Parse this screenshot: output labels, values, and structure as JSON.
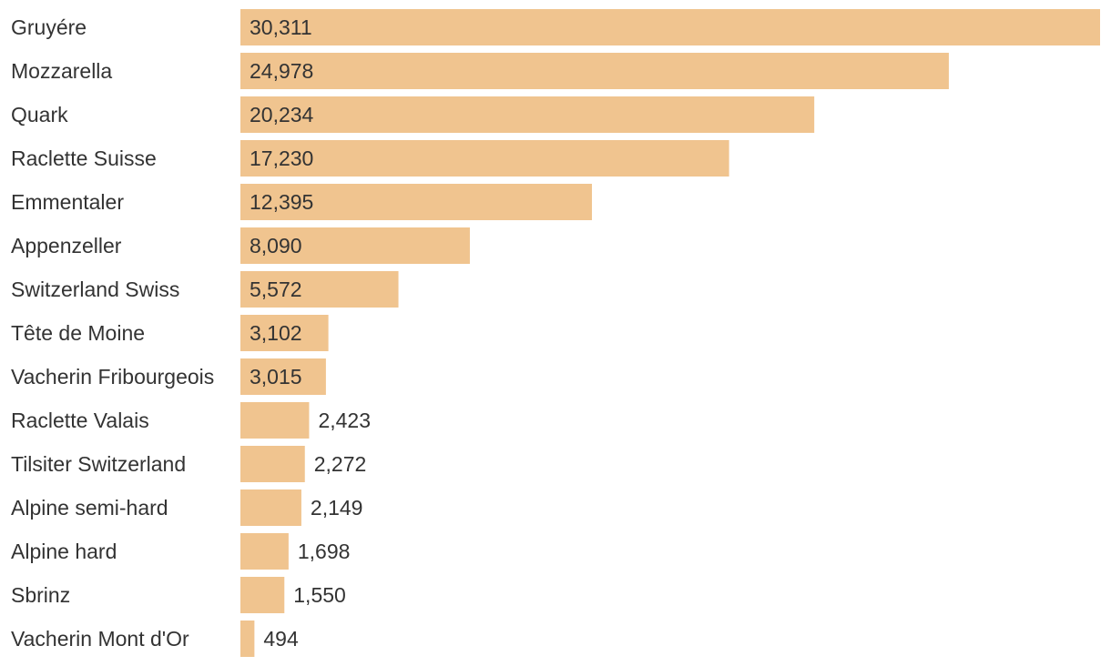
{
  "chart_data": {
    "type": "bar",
    "orientation": "horizontal",
    "categories": [
      "Gruyére",
      "Mozzarella",
      "Quark",
      "Raclette Suisse",
      "Emmentaler",
      "Appenzeller",
      "Switzerland Swiss",
      "Tête de Moine",
      "Vacherin Fribourgeois",
      "Raclette Valais",
      "Tilsiter Switzerland",
      "Alpine semi-hard",
      "Alpine hard",
      "Sbrinz",
      "Vacherin Mont d'Or"
    ],
    "values": [
      30311,
      24978,
      20234,
      17230,
      12395,
      8090,
      5572,
      3102,
      3015,
      2423,
      2272,
      2149,
      1698,
      1550,
      494
    ],
    "value_labels": [
      "30,311",
      "24,978",
      "20,234",
      "17,230",
      "12,395",
      "8,090",
      "5,572",
      "3,102",
      "3,015",
      "2,423",
      "2,272",
      "2,149",
      "1,698",
      "1,550",
      "494"
    ],
    "title": "",
    "xlabel": "",
    "ylabel": "",
    "xlim": [
      0,
      30311
    ],
    "grid": false,
    "legend": "none",
    "bar_color": "#f0c48f"
  }
}
